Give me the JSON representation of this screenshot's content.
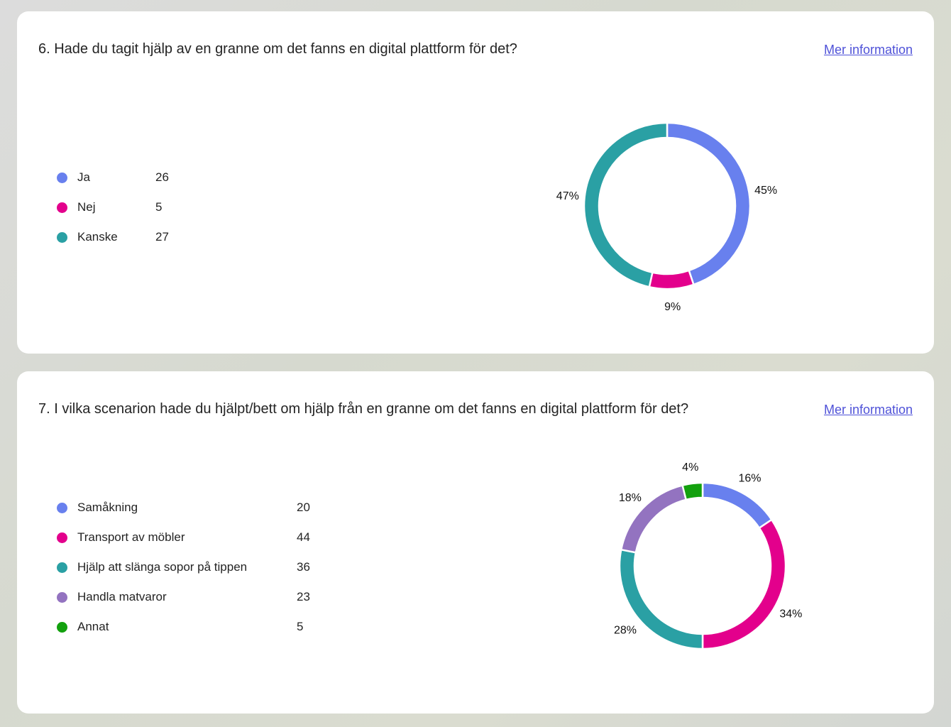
{
  "questions": [
    {
      "title": "6. Hade du tagit hjälp av en granne om det fanns en digital plattform för det?",
      "more_label": "Mer information",
      "chart_data": {
        "type": "pie",
        "donut": true,
        "categories": [
          "Ja",
          "Nej",
          "Kanske"
        ],
        "values": [
          26,
          5,
          27
        ],
        "percent_labels": [
          "45%",
          "9%",
          "47%"
        ],
        "colors": [
          "#6880ee",
          "#e3008c",
          "#2aa0a4"
        ],
        "legend": "left"
      }
    },
    {
      "title": "7. I vilka scenarion hade du hjälpt/bett om hjälp från en granne om det fanns en digital plattform för det?",
      "more_label": "Mer information",
      "chart_data": {
        "type": "pie",
        "donut": true,
        "categories": [
          "Samåkning",
          "Transport av möbler",
          "Hjälp att slänga sopor på tippen",
          "Handla matvaror",
          "Annat"
        ],
        "values": [
          20,
          44,
          36,
          23,
          5
        ],
        "percent_labels": [
          "16%",
          "34%",
          "28%",
          "18%",
          "4%"
        ],
        "colors": [
          "#6880ee",
          "#e3008c",
          "#2aa0a4",
          "#9373c0",
          "#13a10e"
        ],
        "legend": "left"
      }
    }
  ]
}
